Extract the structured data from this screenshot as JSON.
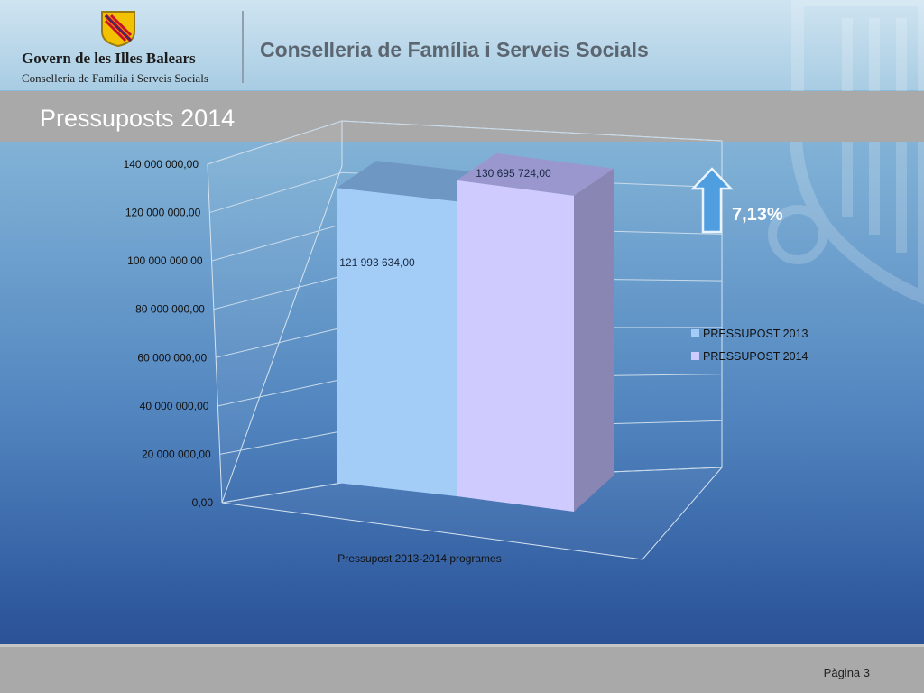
{
  "header": {
    "org_name": "Govern de les Illes Balears",
    "org_sub": "Conselleria de Família i Serveis Socials",
    "title": "Conselleria de Família i Serveis Socials"
  },
  "slide": {
    "title": "Pressuposts 2014"
  },
  "footer": {
    "page_label": "Pàgina 3"
  },
  "change": {
    "value": "7,13%",
    "direction": "up",
    "icon": "up-arrow-icon",
    "color": "#4f9fe0"
  },
  "colors": {
    "series_2013": "#a3cdf7",
    "series_2014": "#cfcbff"
  },
  "chart_data": {
    "type": "bar",
    "style": "3d",
    "categories": [
      "Pressupost  2013-2014 programes"
    ],
    "xlabel": "Pressupost  2013-2014 programes",
    "series": [
      {
        "name": "PRESSUPOST  2013",
        "values": [
          121993634
        ],
        "data_label": "121 993 634,00"
      },
      {
        "name": "PRESSUPOST  2014",
        "values": [
          130695724
        ],
        "data_label": "130 695 724,00"
      }
    ],
    "ylim": [
      0,
      140000000
    ],
    "ytick_values": [
      0,
      20000000,
      40000000,
      60000000,
      80000000,
      100000000,
      120000000,
      140000000
    ],
    "ytick_labels": [
      "0,00",
      "20 000 000,00",
      "40 000 000,00",
      "60 000 000,00",
      "80 000 000,00",
      "100 000 000,00",
      "120 000 000,00",
      "140 000 000,00"
    ],
    "grid": true,
    "legend_position": "right"
  }
}
